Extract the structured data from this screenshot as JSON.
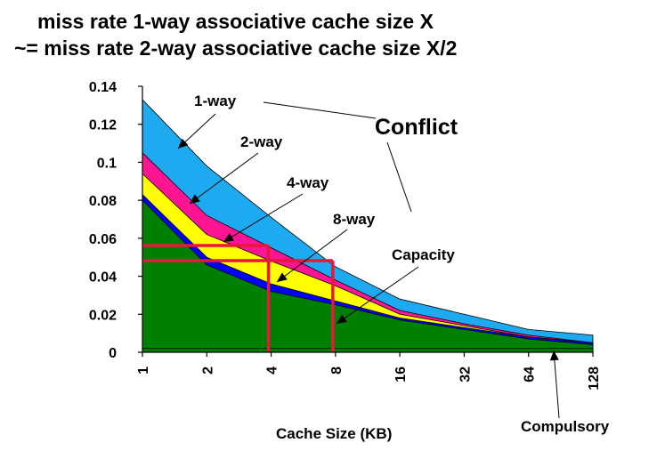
{
  "chart_data": {
    "type": "area",
    "title_lines": [
      "miss rate 1-way associative cache size X",
      "~= miss rate 2-way associative cache size X/2"
    ],
    "xlabel": "Cache Size (KB)",
    "ylabel": "",
    "x": [
      "1",
      "2",
      "4",
      "8",
      "16",
      "32",
      "64",
      "128"
    ],
    "ylim": [
      0,
      0.14
    ],
    "y_ticks": [
      "0.14",
      "0.12",
      "0.1",
      "0.08",
      "0.06",
      "0.04",
      "0.02",
      "0"
    ],
    "y_tick_values": [
      0.14,
      0.12,
      0.1,
      0.08,
      0.06,
      0.04,
      0.02,
      0
    ],
    "series": [
      {
        "name": "Compulsory",
        "color": "#008000",
        "values": [
          0.002,
          0.002,
          0.002,
          0.002,
          0.002,
          0.002,
          0.002,
          0.002
        ]
      },
      {
        "name": "Capacity",
        "color": "#008000",
        "values": [
          0.08,
          0.046,
          0.032,
          0.025,
          0.017,
          0.012,
          0.007,
          0.004
        ]
      },
      {
        "name": "8-way",
        "color": "#0000ff",
        "values": [
          0.083,
          0.05,
          0.036,
          0.027,
          0.018,
          0.013,
          0.008,
          0.005
        ]
      },
      {
        "name": "4-way",
        "color": "#ffff00",
        "values": [
          0.094,
          0.062,
          0.048,
          0.035,
          0.02,
          0.014,
          0.008,
          0.005
        ]
      },
      {
        "name": "2-way",
        "color": "#ff1493",
        "values": [
          0.105,
          0.072,
          0.055,
          0.038,
          0.022,
          0.015,
          0.009,
          0.005
        ]
      },
      {
        "name": "1-way",
        "color": "#1eaaf0",
        "values": [
          0.133,
          0.098,
          0.071,
          0.045,
          0.028,
          0.02,
          0.012,
          0.009
        ]
      }
    ],
    "annotations": {
      "one_way": "1-way",
      "two_way": "2-way",
      "four_way": "4-way",
      "eight_way": "8-way",
      "conflict": "Conflict",
      "capacity": "Capacity",
      "compulsory": "Compulsory"
    },
    "reference_lines": {
      "color": "#e8173c",
      "lines": [
        {
          "x_category": "4",
          "y_value": 0.056
        },
        {
          "x_category": "8",
          "y_value": 0.049
        }
      ]
    },
    "grid": false,
    "legend": "none"
  }
}
